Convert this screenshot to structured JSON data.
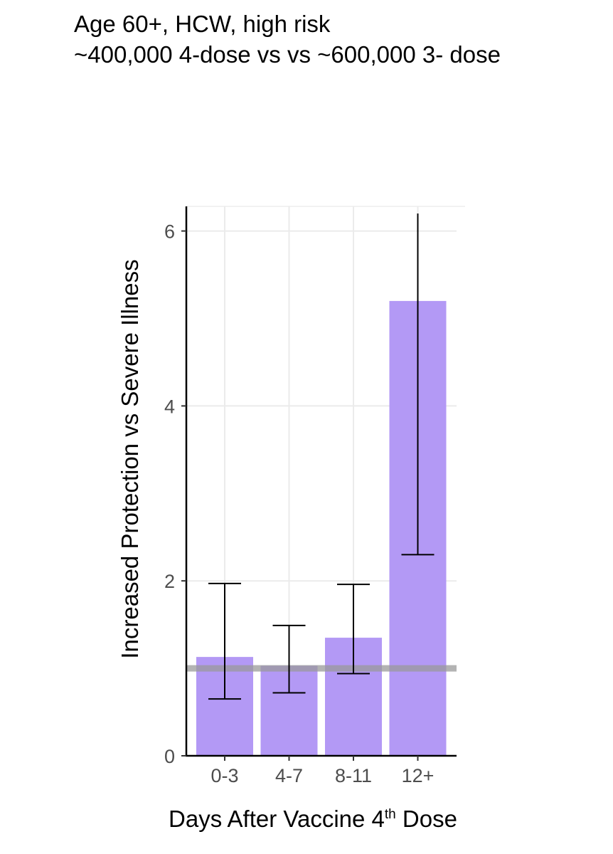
{
  "title_lines": [
    "Age 60+, HCW, high risk",
    "~400,000 4-dose vs  vs ~600,000 3- dose"
  ],
  "colors": {
    "bar": "#b399f5",
    "errorbar": "#000000",
    "reference_line": "#999999",
    "grid": "#ebebeb",
    "axis": "#000000"
  },
  "chart_data": {
    "type": "bar",
    "title": "Age 60+, HCW, high risk ~400,000 4-dose vs  vs ~600,000 3- dose",
    "xlabel": "Days After Vaccine 4th Dose",
    "xlabel_main": "Days After Vaccine 4",
    "xlabel_sup": "th",
    "xlabel_tail": " Dose",
    "ylabel": "Increased Protection vs Severe Illness",
    "categories": [
      "0-3",
      "4-7",
      "8-11",
      "12+"
    ],
    "values": [
      1.13,
      1.03,
      1.35,
      5.2
    ],
    "error_low": [
      0.65,
      0.72,
      0.94,
      2.3
    ],
    "error_high": [
      1.97,
      1.49,
      1.96,
      6.2
    ],
    "reference_line": 1.0,
    "ylim": [
      0,
      6.2
    ],
    "yticks": [
      0,
      2,
      4,
      6
    ],
    "grid": true,
    "legend": "none"
  }
}
